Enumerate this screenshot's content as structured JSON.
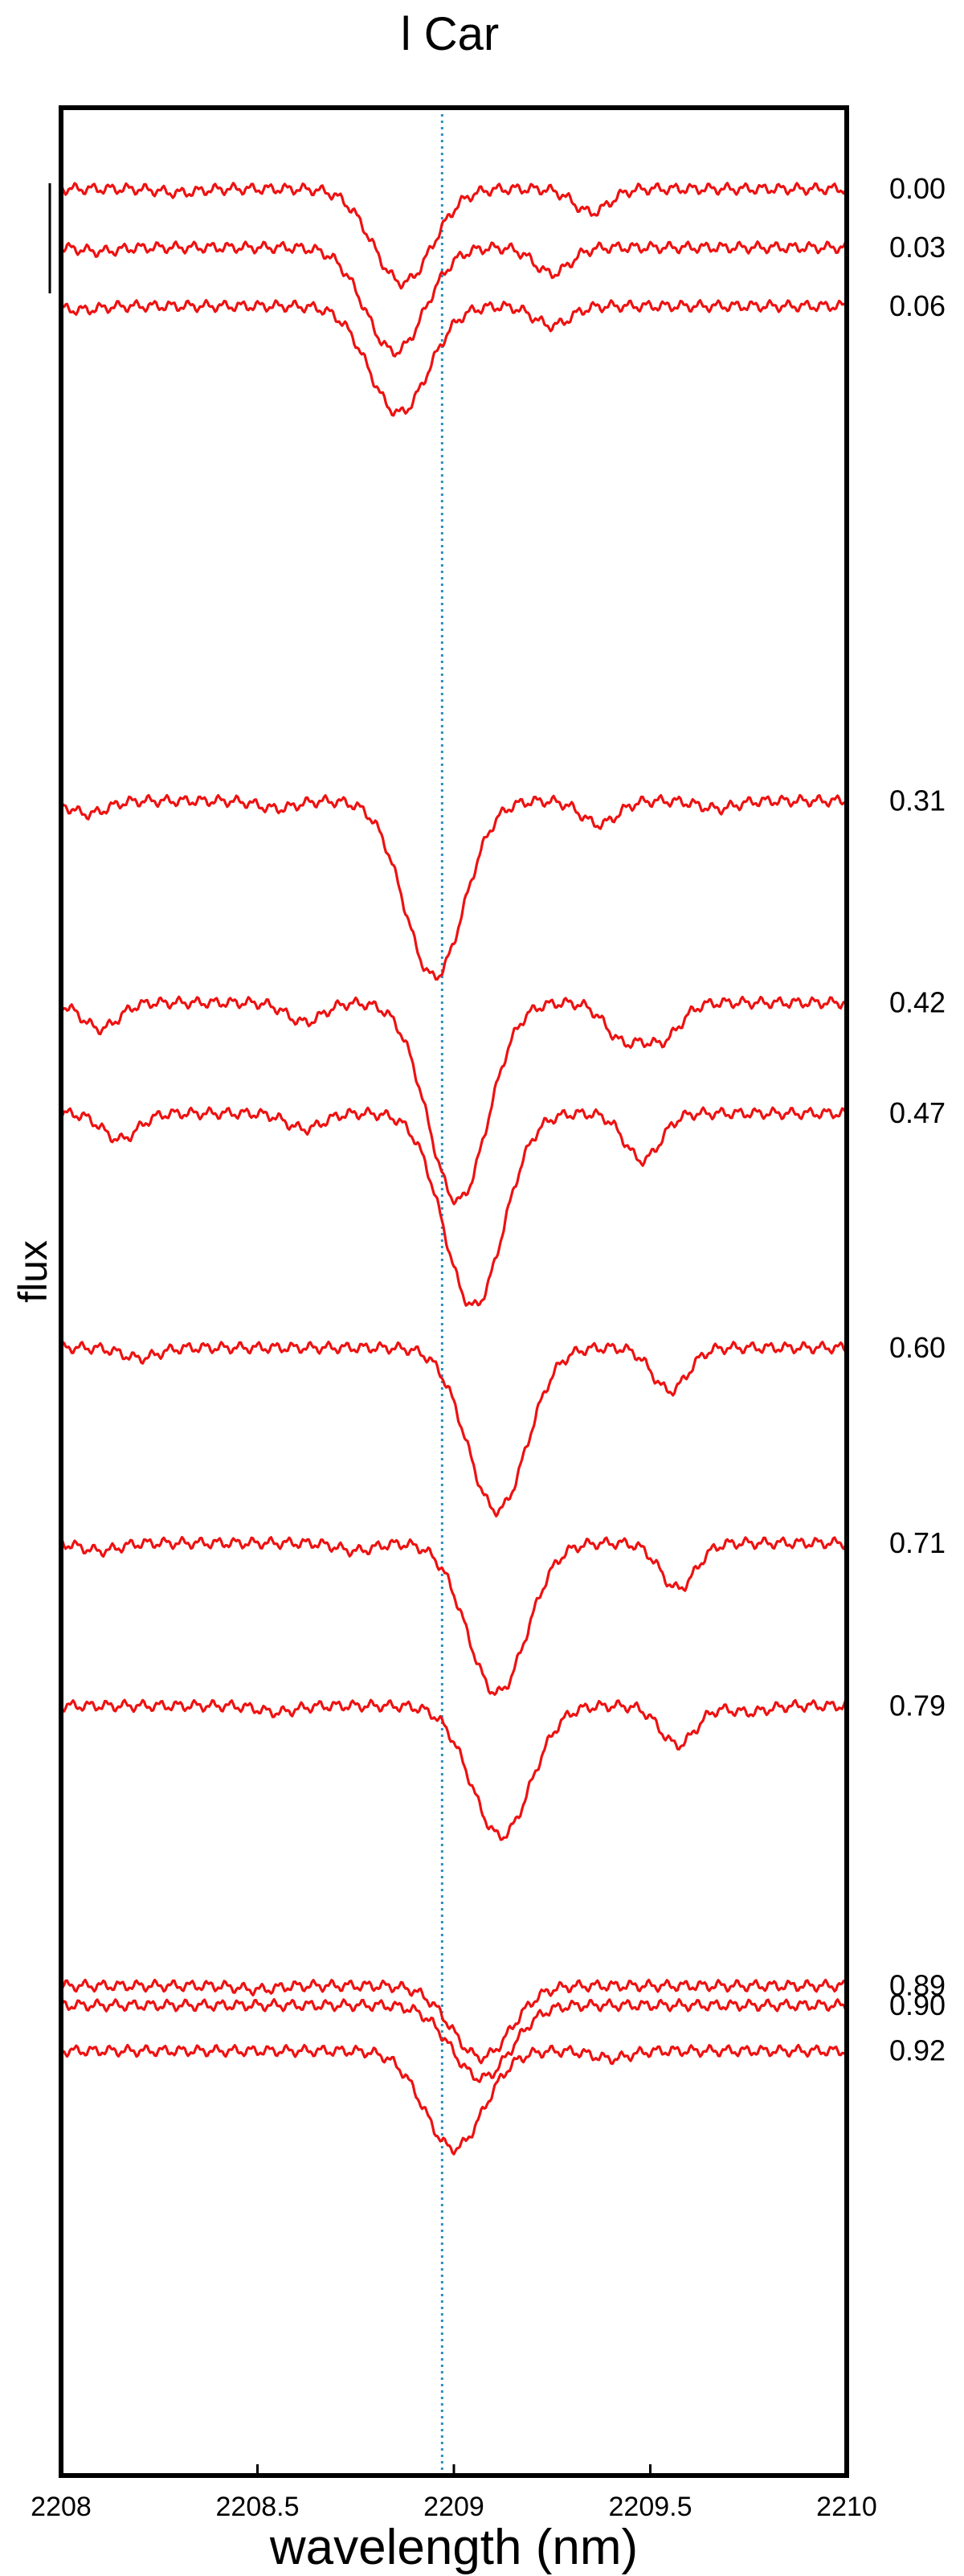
{
  "chart_data": {
    "type": "line",
    "title": "l Car",
    "xlabel": "wavelength (nm)",
    "ylabel": "flux",
    "xlim": [
      2208,
      2210
    ],
    "xticks": [
      {
        "value": 2208,
        "label": "2208"
      },
      {
        "value": 2208.5,
        "label": "2208.5"
      },
      {
        "value": 2209,
        "label": "2209"
      },
      {
        "value": 2209.5,
        "label": "2209.5"
      },
      {
        "value": 2210,
        "label": "2210"
      }
    ],
    "reference_line": {
      "x": 2208.97,
      "color": "#2a8fbd",
      "style": "dotted"
    },
    "scale_bar": true,
    "line_color": "#ee1111",
    "spectra": [
      {
        "label": "0.00",
        "continuum": 0.0,
        "lines": [
          [
            2208.87,
            0.072
          ],
          [
            2209.35,
            0.018
          ],
          [
            2208.3,
            0.003
          ]
        ]
      },
      {
        "label": "0.03",
        "continuum": 0.045,
        "lines": [
          [
            2208.85,
            0.08
          ],
          [
            2209.25,
            0.02
          ],
          [
            2208.1,
            0.003
          ]
        ]
      },
      {
        "label": "0.06",
        "continuum": 0.09,
        "lines": [
          [
            2208.86,
            0.082
          ],
          [
            2209.25,
            0.015
          ],
          [
            2208.05,
            0.003
          ]
        ]
      },
      {
        "label": "0.31",
        "continuum": 0.47,
        "lines": [
          [
            2208.95,
            0.135
          ],
          [
            2209.37,
            0.018
          ],
          [
            2208.07,
            0.01
          ],
          [
            2208.55,
            0.006
          ],
          [
            2209.67,
            0.006
          ]
        ]
      },
      {
        "label": "0.42",
        "continuum": 0.625,
        "lines": [
          [
            2209.01,
            0.152
          ],
          [
            2209.43,
            0.028
          ],
          [
            2209.53,
            0.028
          ],
          [
            2208.1,
            0.02
          ],
          [
            2208.62,
            0.015
          ]
        ]
      },
      {
        "label": "0.47",
        "continuum": 0.71,
        "lines": [
          [
            2209.05,
            0.148
          ],
          [
            2209.48,
            0.036
          ],
          [
            2208.15,
            0.02
          ],
          [
            2208.62,
            0.012
          ]
        ]
      },
      {
        "label": "0.60",
        "continuum": 0.89,
        "lines": [
          [
            2209.11,
            0.125
          ],
          [
            2209.55,
            0.033
          ],
          [
            2208.2,
            0.008
          ]
        ]
      },
      {
        "label": "0.71",
        "continuum": 1.04,
        "lines": [
          [
            2209.11,
            0.115
          ],
          [
            2209.57,
            0.035
          ],
          [
            2208.1,
            0.006
          ],
          [
            2208.75,
            0.006
          ]
        ]
      },
      {
        "label": "0.79",
        "continuum": 1.165,
        "lines": [
          [
            2209.12,
            0.1
          ],
          [
            2209.57,
            0.03
          ],
          [
            2208.55,
            0.005
          ],
          [
            2209.75,
            0.005
          ]
        ]
      },
      {
        "label": "0.89",
        "continuum": 1.38,
        "lines": [
          [
            2209.07,
            0.055
          ],
          [
            2208.5,
            0.003
          ]
        ]
      },
      {
        "label": "0.90",
        "continuum": 1.395,
        "lines": [
          [
            2209.07,
            0.056
          ]
        ]
      },
      {
        "label": "0.92",
        "continuum": 1.43,
        "lines": [
          [
            2209.0,
            0.075
          ],
          [
            2209.4,
            0.006
          ]
        ]
      }
    ]
  }
}
